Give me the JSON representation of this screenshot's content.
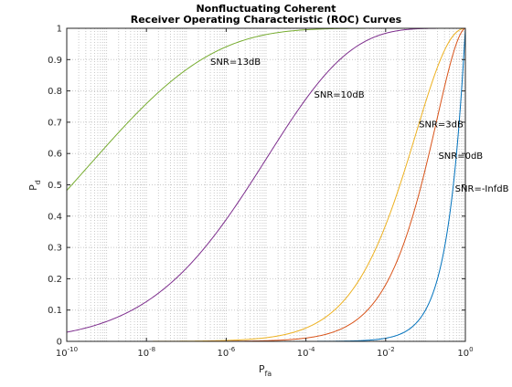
{
  "chart_data": {
    "type": "line",
    "title": [
      "Nonfluctuating Coherent",
      "Receiver Operating Characteristic (ROC) Curves"
    ],
    "xlabel": {
      "main": "P",
      "sub": "fa"
    },
    "ylabel": {
      "main": "P",
      "sub": "d"
    },
    "x_scale": "log",
    "xlim": [
      1e-10,
      1
    ],
    "ylim": [
      0,
      1
    ],
    "grid": true,
    "x_ticks": [
      {
        "value": 1e-10,
        "base": "10",
        "exp": "-10"
      },
      {
        "value": 1e-08,
        "base": "10",
        "exp": "-8"
      },
      {
        "value": 1e-06,
        "base": "10",
        "exp": "-6"
      },
      {
        "value": 0.0001,
        "base": "10",
        "exp": "-4"
      },
      {
        "value": 0.01,
        "base": "10",
        "exp": "-2"
      },
      {
        "value": 1,
        "base": "10",
        "exp": "0"
      }
    ],
    "y_ticks": [
      "0",
      "0.1",
      "0.2",
      "0.3",
      "0.4",
      "0.5",
      "0.6",
      "0.7",
      "0.8",
      "0.9",
      "1"
    ],
    "series": [
      {
        "name": "SNR=13dB",
        "snr_db": 13,
        "color": "#77AC30",
        "label_at": {
          "x": 4e-07,
          "y": 0.895
        }
      },
      {
        "name": "SNR=10dB",
        "snr_db": 10,
        "color": "#7E2F8E",
        "label_at": {
          "x": 0.00016,
          "y": 0.79
        }
      },
      {
        "name": "SNR=3dB",
        "snr_db": 3,
        "color": "#EDB120",
        "label_at": {
          "x": 0.068,
          "y": 0.695
        }
      },
      {
        "name": "SNR=0dB",
        "snr_db": 0,
        "color": "#D95319",
        "label_at": {
          "x": 0.21,
          "y": 0.595
        }
      },
      {
        "name": "SNR=-InfdB",
        "snr_db": "-Inf",
        "color": "#0072BD",
        "label_at": {
          "x": 0.55,
          "y": 0.49
        }
      }
    ]
  }
}
